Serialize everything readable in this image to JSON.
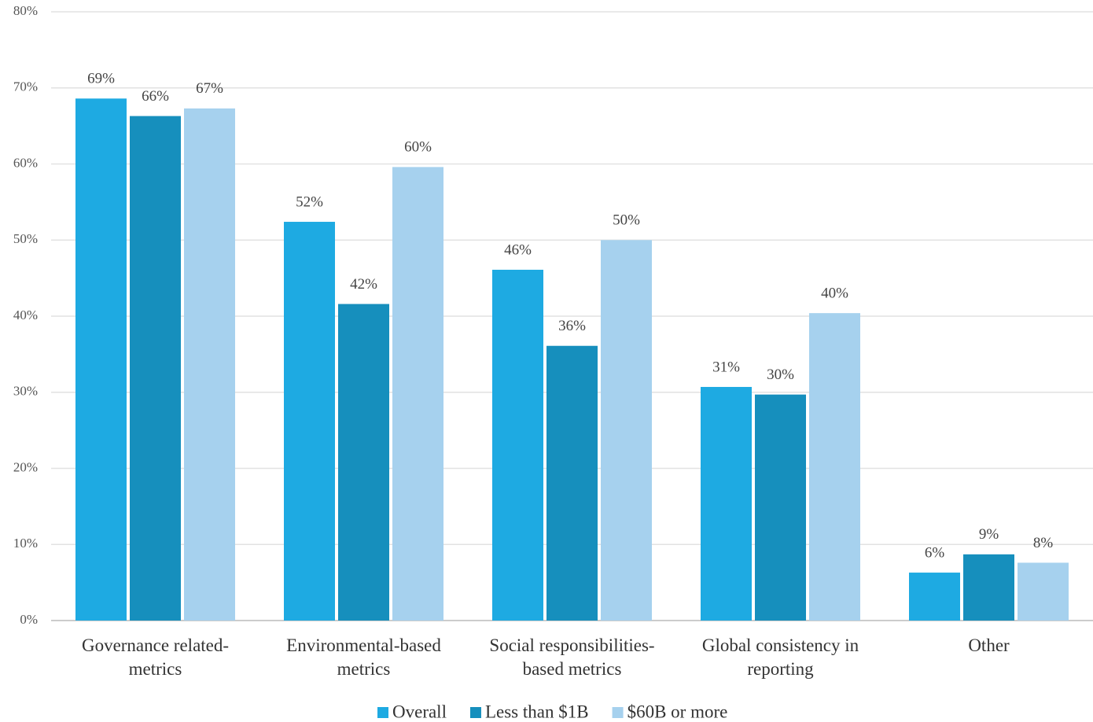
{
  "chart_data": {
    "type": "bar",
    "categories": [
      "Governance related-\nmetrics",
      "Environmental-based\nmetrics",
      "Social responsibilities-\nbased metrics",
      "Global consistency in\nreporting",
      "Other"
    ],
    "series": [
      {
        "name": "Overall",
        "color": "#1eaae2",
        "values": [
          68.6,
          52.4,
          46.1,
          30.7,
          6.3
        ],
        "value_labels": [
          "69%",
          "52%",
          "46%",
          "31%",
          "6%"
        ]
      },
      {
        "name": "Less than $1B",
        "color": "#168fbd",
        "values": [
          66.3,
          41.6,
          36.1,
          29.7,
          8.7
        ],
        "value_labels": [
          "66%",
          "42%",
          "36%",
          "30%",
          "9%"
        ]
      },
      {
        "name": "$60B or more",
        "color": "#a6d1ee",
        "values": [
          67.3,
          59.6,
          50.0,
          40.4,
          7.6
        ],
        "value_labels": [
          "67%",
          "60%",
          "50%",
          "40%",
          "8%"
        ]
      }
    ],
    "ylim": [
      0,
      80
    ],
    "yticks": [
      {
        "value": 0,
        "label": "0%"
      },
      {
        "value": 10,
        "label": "10%"
      },
      {
        "value": 20,
        "label": "20%"
      },
      {
        "value": 30,
        "label": "30%"
      },
      {
        "value": 40,
        "label": "40%"
      },
      {
        "value": 50,
        "label": "50%"
      },
      {
        "value": 60,
        "label": "60%"
      },
      {
        "value": 70,
        "label": "70%"
      },
      {
        "value": 80,
        "label": "80%"
      }
    ],
    "grid": true
  }
}
